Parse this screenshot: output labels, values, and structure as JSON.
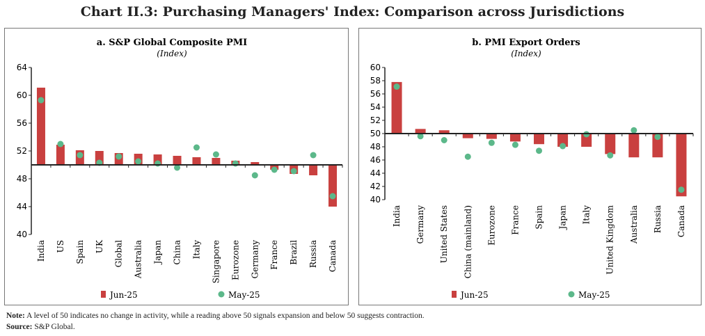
{
  "title": "Chart II.3: Purchasing Managers' Index: Comparison across Jurisdictions",
  "colors": {
    "bar": "#c9403f",
    "dot": "#5cb88a"
  },
  "chart_data": [
    {
      "type": "bar",
      "title": "a. S&P Global Composite PMI",
      "subtitle": "(Index)",
      "ylim": [
        40,
        64
      ],
      "yticks": [
        40,
        44,
        48,
        52,
        56,
        60,
        64
      ],
      "baseline": 50,
      "categories": [
        "India",
        "US",
        "Spain",
        "UK",
        "Global",
        "Australia",
        "Japan",
        "China",
        "Italy",
        "Singapore",
        "Eurozone",
        "Germany",
        "France",
        "Brazil",
        "Russia",
        "Canada"
      ],
      "series": [
        {
          "name": "Jun-25",
          "kind": "bar",
          "values": [
            61.1,
            52.9,
            52.1,
            52.0,
            51.7,
            51.6,
            51.5,
            51.3,
            51.1,
            51.0,
            50.6,
            50.4,
            49.3,
            48.7,
            48.5,
            44.0
          ]
        },
        {
          "name": "May-25",
          "kind": "dot",
          "values": [
            59.3,
            53.0,
            51.4,
            50.3,
            51.2,
            50.5,
            50.2,
            49.6,
            52.5,
            51.5,
            50.2,
            48.5,
            49.3,
            49.1,
            51.4,
            45.5
          ]
        }
      ]
    },
    {
      "type": "bar",
      "title": "b. PMI Export Orders",
      "subtitle": "(Index)",
      "ylim": [
        40,
        60
      ],
      "yticks": [
        40,
        42,
        44,
        46,
        48,
        50,
        52,
        54,
        56,
        58,
        60
      ],
      "baseline": 50,
      "categories": [
        "India",
        "Germany",
        "United States",
        "China (mainland)",
        "Eurozone",
        "France",
        "Spain",
        "Japan",
        "Italy",
        "United Kingdom",
        "Australia",
        "Russia",
        "Canada"
      ],
      "series": [
        {
          "name": "Jun-25",
          "kind": "bar",
          "values": [
            57.8,
            50.7,
            50.5,
            49.3,
            49.2,
            48.8,
            48.4,
            48.0,
            48.0,
            46.9,
            46.4,
            46.4,
            40.5
          ]
        },
        {
          "name": "May-25",
          "kind": "dot",
          "values": [
            57.1,
            49.6,
            49.0,
            46.5,
            48.6,
            48.3,
            47.4,
            48.1,
            49.9,
            46.7,
            50.5,
            49.5,
            41.5
          ]
        }
      ]
    }
  ],
  "note_label": "Note:",
  "note_text": " A level of 50 indicates no change in activity, while a reading above 50 signals expansion and below 50 suggests contraction.",
  "source_label": "Source:",
  "source_text": " S&P Global."
}
